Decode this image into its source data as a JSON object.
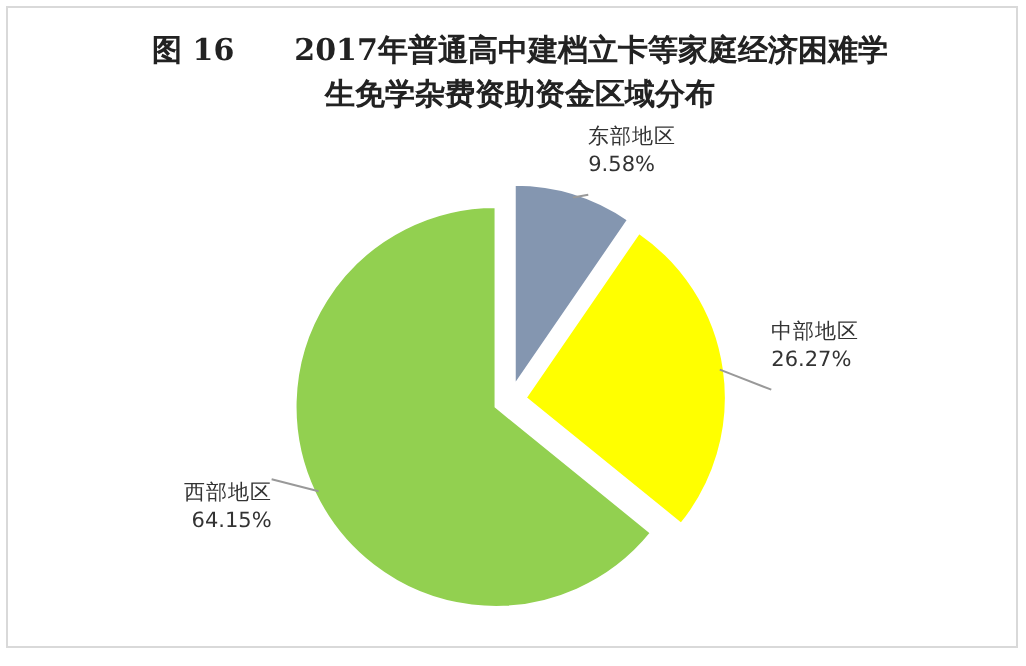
{
  "chart_data": {
    "type": "pie",
    "title": "图 16　　2017年普通高中建档立卡等家庭经济困难学生免学杂费资助资金区域分布",
    "categories": [
      "东部地区",
      "中部地区",
      "西部地区"
    ],
    "values": [
      9.58,
      26.27,
      64.15
    ],
    "value_labels": [
      "9.58%",
      "26.27%",
      "64.15%"
    ],
    "colors": [
      "#8496b0",
      "#ffff00",
      "#92d050"
    ]
  }
}
